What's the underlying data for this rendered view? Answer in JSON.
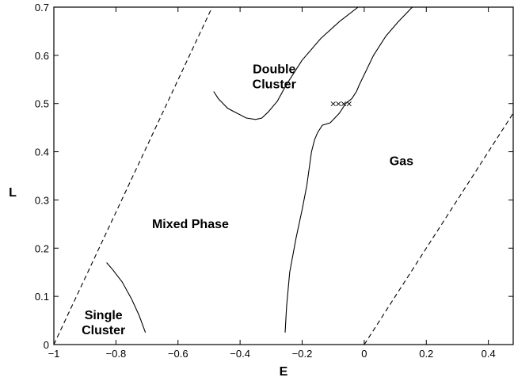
{
  "chart_data": {
    "type": "line",
    "xlabel": "E",
    "ylabel": "L",
    "xlim": [
      -1,
      0.48
    ],
    "ylim": [
      0,
      0.7
    ],
    "x_ticks": [
      -1,
      -0.8,
      -0.6,
      -0.4,
      -0.2,
      0,
      0.2,
      0.4
    ],
    "x_tick_labels": [
      "−1",
      "−0.8",
      "−0.6",
      "−0.4",
      "−0.2",
      "0",
      "0.2",
      "0.4"
    ],
    "y_ticks": [
      0,
      0.1,
      0.2,
      0.3,
      0.4,
      0.5,
      0.6,
      0.7
    ],
    "y_tick_labels": [
      "0",
      "0.1",
      "0.2",
      "0.3",
      "0.4",
      "0.5",
      "0.6",
      "0.7"
    ],
    "grid": false,
    "region_labels": [
      {
        "lines": [
          "Double",
          "Cluster"
        ],
        "x": -0.29,
        "y": 0.555
      },
      {
        "lines": [
          "Mixed Phase"
        ],
        "x": -0.56,
        "y": 0.25
      },
      {
        "lines": [
          "Gas"
        ],
        "x": 0.12,
        "y": 0.38
      },
      {
        "lines": [
          "Single",
          "Cluster"
        ],
        "x": -0.84,
        "y": 0.045
      }
    ],
    "series": [
      {
        "style": "dashed",
        "x": [
          -1,
          -0.49
        ],
        "y": [
          0,
          0.7
        ]
      },
      {
        "style": "dashed",
        "x": [
          0,
          0.48
        ],
        "y": [
          0,
          0.48
        ]
      },
      {
        "style": "solid",
        "x": [
          -0.83,
          -0.81,
          -0.78,
          -0.75,
          -0.725,
          -0.705
        ],
        "y": [
          0.17,
          0.155,
          0.13,
          0.095,
          0.06,
          0.025
        ]
      },
      {
        "style": "solid",
        "x": [
          -0.485,
          -0.47,
          -0.44,
          -0.41,
          -0.38,
          -0.35,
          -0.33,
          -0.31,
          -0.28,
          -0.25,
          -0.2,
          -0.14,
          -0.08,
          -0.02
        ],
        "y": [
          0.525,
          0.51,
          0.49,
          0.48,
          0.47,
          0.467,
          0.47,
          0.482,
          0.505,
          0.54,
          0.59,
          0.635,
          0.67,
          0.7
        ]
      },
      {
        "style": "solid",
        "x": [
          -0.255,
          -0.25,
          -0.24,
          -0.22,
          -0.2,
          -0.185,
          -0.17,
          -0.16,
          -0.15,
          -0.135,
          -0.11,
          -0.095,
          -0.08,
          -0.06,
          -0.04,
          -0.025,
          -0.015,
          0.0,
          0.03,
          0.07,
          0.11,
          0.155
        ],
        "y": [
          0.025,
          0.08,
          0.15,
          0.22,
          0.28,
          0.33,
          0.4,
          0.425,
          0.44,
          0.455,
          0.46,
          0.47,
          0.48,
          0.5,
          0.51,
          0.525,
          0.54,
          0.56,
          0.6,
          0.64,
          0.67,
          0.7
        ]
      }
    ],
    "markers": {
      "symbol": "×",
      "x": [
        -0.1,
        -0.083,
        -0.066,
        -0.049
      ],
      "y": [
        0.5,
        0.5,
        0.5,
        0.5
      ]
    }
  }
}
